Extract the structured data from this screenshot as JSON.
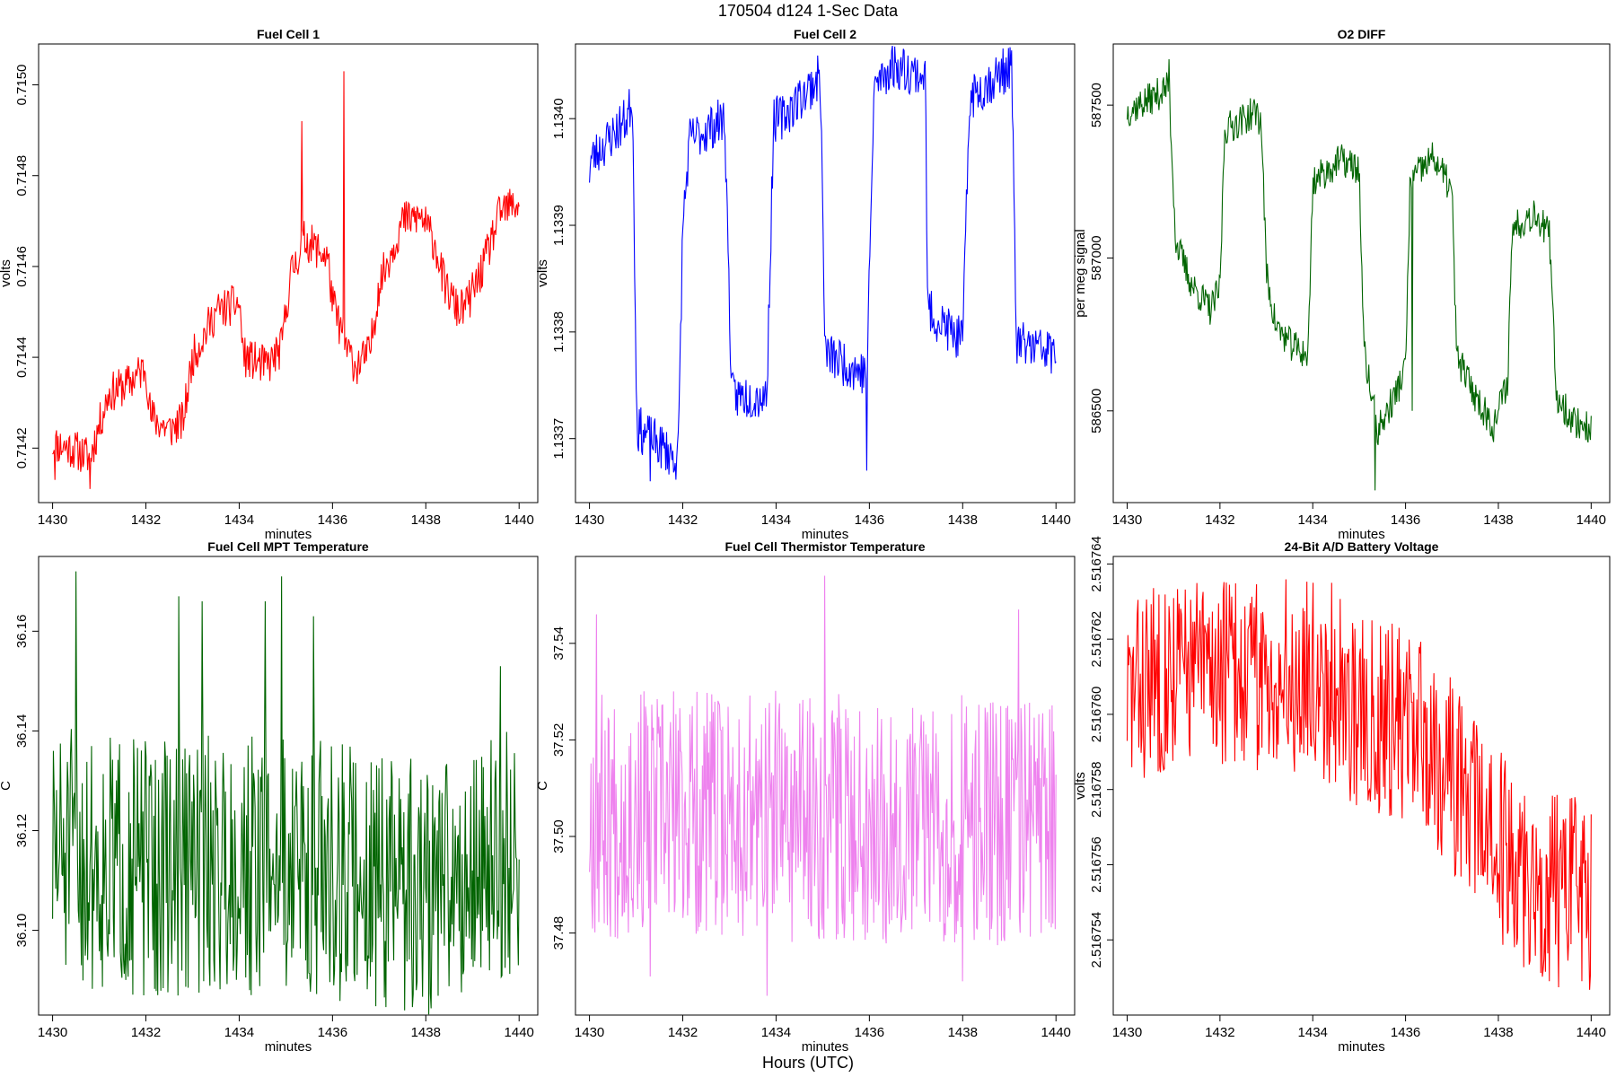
{
  "figure": {
    "suptitle": "170504   d124   1-Sec Data",
    "xlabel": "Hours (UTC)"
  },
  "chart_data": [
    {
      "type": "line",
      "title": "Fuel Cell 1",
      "xlabel": "minutes",
      "ylabel": "volts",
      "color": "#ff0000",
      "xlim": [
        1429.7,
        1440.4
      ],
      "ylim": [
        0.71408,
        0.71509
      ],
      "xticks": [
        1430,
        1432,
        1434,
        1436,
        1438,
        1440
      ],
      "xtick_labels": [
        "1430",
        "1432",
        "1434",
        "1436",
        "1438",
        "1440"
      ],
      "yticks": [
        0.7142,
        0.7144,
        0.7146,
        0.7148,
        0.715
      ],
      "ytick_labels": [
        "0.7142",
        "0.7144",
        "0.7146",
        "0.7148",
        "0.7150"
      ],
      "noise": 4.5e-05,
      "seed": 11,
      "anchors": [
        [
          1430,
          0.71421
        ],
        [
          1430.4,
          0.7142
        ],
        [
          1430.8,
          0.71418
        ],
        [
          1431.0,
          0.71425
        ],
        [
          1431.2,
          0.71432
        ],
        [
          1431.6,
          0.71434
        ],
        [
          1432.0,
          0.71438
        ],
        [
          1432.1,
          0.71427
        ],
        [
          1432.5,
          0.71424
        ],
        [
          1432.8,
          0.71426
        ],
        [
          1433.0,
          0.7144
        ],
        [
          1433.5,
          0.7145
        ],
        [
          1434.0,
          0.71452
        ],
        [
          1434.1,
          0.7144
        ],
        [
          1434.6,
          0.71438
        ],
        [
          1434.9,
          0.71442
        ],
        [
          1435.1,
          0.71458
        ],
        [
          1435.4,
          0.71466
        ],
        [
          1435.9,
          0.71462
        ],
        [
          1436.0,
          0.71452
        ],
        [
          1436.3,
          0.71442
        ],
        [
          1436.5,
          0.71438
        ],
        [
          1436.8,
          0.71441
        ],
        [
          1437.0,
          0.71456
        ],
        [
          1437.5,
          0.7147
        ],
        [
          1437.9,
          0.71471
        ],
        [
          1438.2,
          0.71465
        ],
        [
          1438.4,
          0.71456
        ],
        [
          1438.7,
          0.7145
        ],
        [
          1438.9,
          0.71452
        ],
        [
          1439.2,
          0.71459
        ],
        [
          1439.6,
          0.71472
        ],
        [
          1440,
          0.71474
        ]
      ],
      "spikes": [
        [
          1435.35,
          0.71492
        ],
        [
          1436.25,
          0.71503
        ],
        [
          1430.05,
          0.71413
        ],
        [
          1430.8,
          0.71411
        ]
      ]
    },
    {
      "type": "line",
      "title": "Fuel Cell 2",
      "xlabel": "minutes",
      "ylabel": "volts",
      "color": "#0000ff",
      "xlim": [
        1429.7,
        1440.4
      ],
      "ylim": [
        1.13364,
        1.13407
      ],
      "xticks": [
        1430,
        1432,
        1434,
        1436,
        1438,
        1440
      ],
      "xtick_labels": [
        "1430",
        "1432",
        "1434",
        "1436",
        "1438",
        "1440"
      ],
      "yticks": [
        1.1337,
        1.1338,
        1.1339,
        1.134
      ],
      "ytick_labels": [
        "1.1337",
        "1.1338",
        "1.1339",
        "1.1340"
      ],
      "noise": 2.2e-05,
      "seed": 23,
      "anchors": [
        [
          1430,
          1.13396
        ],
        [
          1430.8,
          1.134
        ],
        [
          1430.92,
          1.13402
        ],
        [
          1431.02,
          1.13371
        ],
        [
          1431.9,
          1.13368
        ],
        [
          1432.0,
          1.1339
        ],
        [
          1432.15,
          1.13398
        ],
        [
          1432.9,
          1.134
        ],
        [
          1433.05,
          1.13374
        ],
        [
          1433.8,
          1.13374
        ],
        [
          1433.95,
          1.134
        ],
        [
          1434.1,
          1.134
        ],
        [
          1434.95,
          1.13404
        ],
        [
          1435.05,
          1.13378
        ],
        [
          1435.95,
          1.13376
        ],
        [
          1436.1,
          1.13403
        ],
        [
          1436.5,
          1.13405
        ],
        [
          1437.2,
          1.13404
        ],
        [
          1437.25,
          1.13382
        ],
        [
          1438.0,
          1.13379
        ],
        [
          1438.15,
          1.13402
        ],
        [
          1439.05,
          1.13405
        ],
        [
          1439.15,
          1.13379
        ],
        [
          1440,
          1.13378
        ]
      ],
      "spikes": [
        [
          1430.0,
          1.13394
        ],
        [
          1431.3,
          1.13366
        ],
        [
          1435.95,
          1.13367
        ]
      ]
    },
    {
      "type": "line",
      "title": "O2 DIFF",
      "xlabel": "minutes",
      "ylabel": "per meg signal",
      "color": "#006400",
      "xlim": [
        1429.7,
        1440.4
      ],
      "ylim": [
        586200,
        587700
      ],
      "xticks": [
        1430,
        1432,
        1434,
        1436,
        1438,
        1440
      ],
      "xtick_labels": [
        "1430",
        "1432",
        "1434",
        "1436",
        "1438",
        "1440"
      ],
      "yticks": [
        586500,
        587000,
        587500
      ],
      "ytick_labels": [
        "586500",
        "587000",
        "587500"
      ],
      "noise": 55,
      "seed": 37,
      "anchors": [
        [
          1430,
          587480
        ],
        [
          1430.5,
          587520
        ],
        [
          1430.9,
          587560
        ],
        [
          1431.05,
          587050
        ],
        [
          1431.4,
          586910
        ],
        [
          1431.8,
          586830
        ],
        [
          1432.0,
          586900
        ],
        [
          1432.1,
          587420
        ],
        [
          1432.8,
          587480
        ],
        [
          1432.9,
          587420
        ],
        [
          1433.0,
          586950
        ],
        [
          1433.2,
          586780
        ],
        [
          1433.5,
          586720
        ],
        [
          1433.9,
          586680
        ],
        [
          1434.0,
          587250
        ],
        [
          1434.6,
          587320
        ],
        [
          1435.0,
          587290
        ],
        [
          1435.1,
          586700
        ],
        [
          1435.4,
          586430
        ],
        [
          1435.8,
          586560
        ],
        [
          1436.0,
          586640
        ],
        [
          1436.1,
          587250
        ],
        [
          1436.6,
          587330
        ],
        [
          1437.0,
          587220
        ],
        [
          1437.1,
          586680
        ],
        [
          1437.5,
          586550
        ],
        [
          1437.9,
          586450
        ],
        [
          1438.2,
          586600
        ],
        [
          1438.3,
          587100
        ],
        [
          1438.8,
          587150
        ],
        [
          1439.1,
          587070
        ],
        [
          1439.25,
          586550
        ],
        [
          1439.6,
          586470
        ],
        [
          1440,
          586440
        ]
      ],
      "spikes": [
        [
          1435.35,
          586240
        ],
        [
          1436.15,
          586500
        ],
        [
          1430.9,
          587650
        ]
      ]
    },
    {
      "type": "line",
      "title": "Fuel Cell MPT Temperature",
      "xlabel": "minutes",
      "ylabel": "C",
      "color": "#006400",
      "xlim": [
        1429.7,
        1440.4
      ],
      "ylim": [
        36.083,
        36.175
      ],
      "xticks": [
        1430,
        1432,
        1434,
        1436,
        1438,
        1440
      ],
      "xtick_labels": [
        "1430",
        "1432",
        "1434",
        "1436",
        "1438",
        "1440"
      ],
      "yticks": [
        36.1,
        36.12,
        36.14,
        36.16
      ],
      "ytick_labels": [
        "36.10",
        "36.12",
        "36.14",
        "36.16"
      ],
      "noise": 0.026,
      "seed": 51,
      "anchors": [
        [
          1430,
          36.115
        ],
        [
          1432,
          36.112
        ],
        [
          1434,
          36.114
        ],
        [
          1436,
          36.112
        ],
        [
          1438,
          36.108
        ],
        [
          1440,
          36.116
        ]
      ],
      "spikes": [
        [
          1430.5,
          36.172
        ],
        [
          1432.7,
          36.167
        ],
        [
          1433.2,
          36.166
        ],
        [
          1434.55,
          36.166
        ],
        [
          1434.9,
          36.171
        ],
        [
          1435.6,
          36.163
        ],
        [
          1432.25,
          36.087
        ],
        [
          1434.25,
          36.087
        ],
        [
          1437.8,
          36.088
        ],
        [
          1439.6,
          36.153
        ]
      ]
    },
    {
      "type": "line",
      "title": "Fuel Cell Thermistor Temperature",
      "xlabel": "minutes",
      "ylabel": "C",
      "color": "#ee82ee",
      "xlim": [
        1429.7,
        1440.4
      ],
      "ylim": [
        37.463,
        37.558
      ],
      "xticks": [
        1430,
        1432,
        1434,
        1436,
        1438,
        1440
      ],
      "xtick_labels": [
        "1430",
        "1432",
        "1434",
        "1436",
        "1438",
        "1440"
      ],
      "yticks": [
        37.48,
        37.5,
        37.52,
        37.54
      ],
      "ytick_labels": [
        "37.48",
        "37.50",
        "37.52",
        "37.54"
      ],
      "noise": 0.026,
      "seed": 67,
      "anchors": [
        [
          1430,
          37.505
        ],
        [
          1435,
          37.504
        ],
        [
          1440,
          37.503
        ]
      ],
      "spikes": [
        [
          1430.15,
          37.546
        ],
        [
          1435.05,
          37.554
        ],
        [
          1439.2,
          37.547
        ],
        [
          1433.8,
          37.467
        ],
        [
          1438.0,
          37.47
        ],
        [
          1431.3,
          37.471
        ]
      ]
    },
    {
      "type": "line",
      "title": "24-Bit A/D Battery Voltage",
      "xlabel": "minutes",
      "ylabel": "volts",
      "color": "#ff0000",
      "xlim": [
        1429.7,
        1440.4
      ],
      "ylim": [
        2.516752,
        2.5167642
      ],
      "xticks": [
        1430,
        1432,
        1434,
        1436,
        1438,
        1440
      ],
      "xtick_labels": [
        "1430",
        "1432",
        "1434",
        "1436",
        "1438",
        "1440"
      ],
      "yticks": [
        2.516754,
        2.516756,
        2.516758,
        2.51676,
        2.516762,
        2.516764
      ],
      "ytick_labels": [
        "2.516754",
        "2.516756",
        "2.516758",
        "2.516760",
        "2.516762",
        "2.516764"
      ],
      "noise": 2.6e-06,
      "seed": 83,
      "anchors": [
        [
          1430,
          2.5167605
        ],
        [
          1431,
          2.5167612
        ],
        [
          1432,
          2.5167612
        ],
        [
          1433,
          2.516761
        ],
        [
          1434,
          2.516761
        ],
        [
          1434.6,
          2.5167605
        ],
        [
          1435,
          2.51676
        ],
        [
          1436,
          2.5167598
        ],
        [
          1436.8,
          2.5167588
        ],
        [
          1437.5,
          2.5167574
        ],
        [
          1438.2,
          2.5167562
        ],
        [
          1439,
          2.5167553
        ],
        [
          1440,
          2.5167552
        ]
      ],
      "spikes": [
        [
          1434.0,
          2.5167635
        ],
        [
          1434.4,
          2.5167635
        ],
        [
          1439.1,
          2.5167529
        ],
        [
          1439.8,
          2.5167529
        ]
      ]
    }
  ]
}
